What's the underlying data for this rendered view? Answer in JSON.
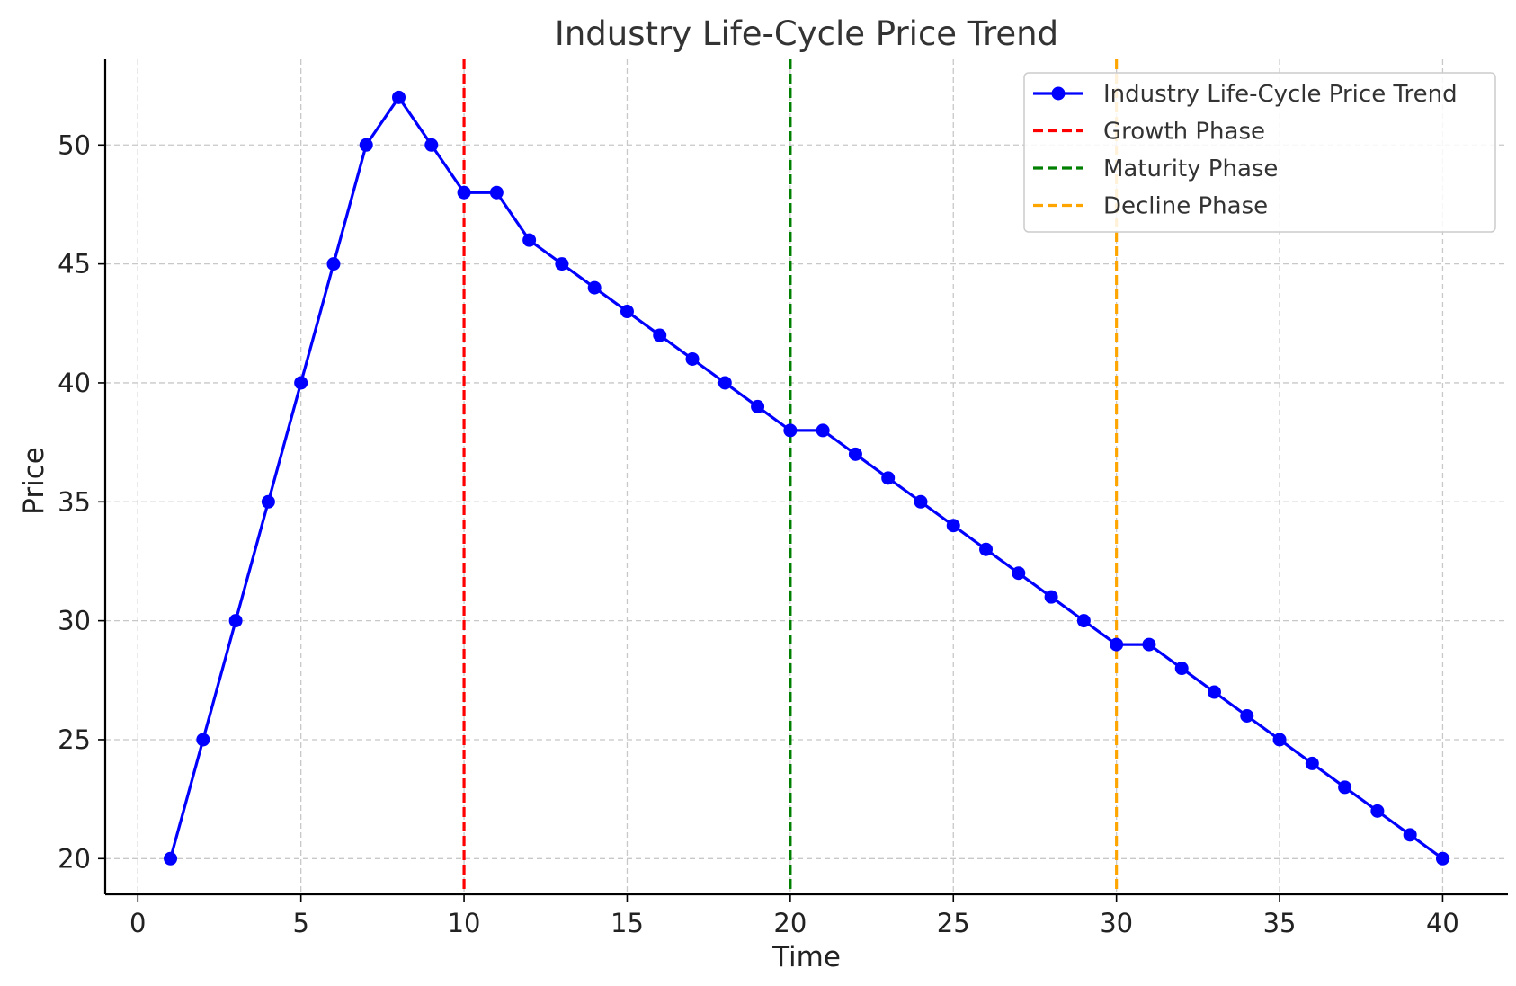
{
  "chart_data": {
    "type": "line",
    "title": "Industry Life-Cycle Price Trend",
    "xlabel": "Time",
    "ylabel": "Price",
    "xlim": [
      -1,
      42
    ],
    "ylim": [
      18.5,
      53.6
    ],
    "xticks": [
      0,
      5,
      10,
      15,
      20,
      25,
      30,
      35,
      40
    ],
    "yticks": [
      20,
      25,
      30,
      35,
      40,
      45,
      50
    ],
    "grid": true,
    "legend_position": "top-right",
    "series": [
      {
        "name": "Industry Life-Cycle Price Trend",
        "color": "#0000ff",
        "marker": "circle",
        "x": [
          1,
          2,
          3,
          4,
          5,
          6,
          7,
          8,
          9,
          10,
          11,
          12,
          13,
          14,
          15,
          16,
          17,
          18,
          19,
          20,
          21,
          22,
          23,
          24,
          25,
          26,
          27,
          28,
          29,
          30,
          31,
          32,
          33,
          34,
          35,
          36,
          37,
          38,
          39,
          40
        ],
        "y": [
          20,
          25,
          30,
          35,
          40,
          45,
          50,
          52,
          50,
          48,
          48,
          46,
          45,
          44,
          43,
          42,
          41,
          40,
          39,
          38,
          38,
          37,
          36,
          35,
          34,
          33,
          32,
          31,
          30,
          29,
          29,
          28,
          27,
          26,
          25,
          24,
          23,
          22,
          21,
          20
        ]
      }
    ],
    "vlines": [
      {
        "name": "Growth Phase",
        "x": 10,
        "color": "#ff0000"
      },
      {
        "name": "Maturity Phase",
        "x": 20,
        "color": "#008000"
      },
      {
        "name": "Decline Phase",
        "x": 30,
        "color": "#ffa500"
      }
    ]
  }
}
